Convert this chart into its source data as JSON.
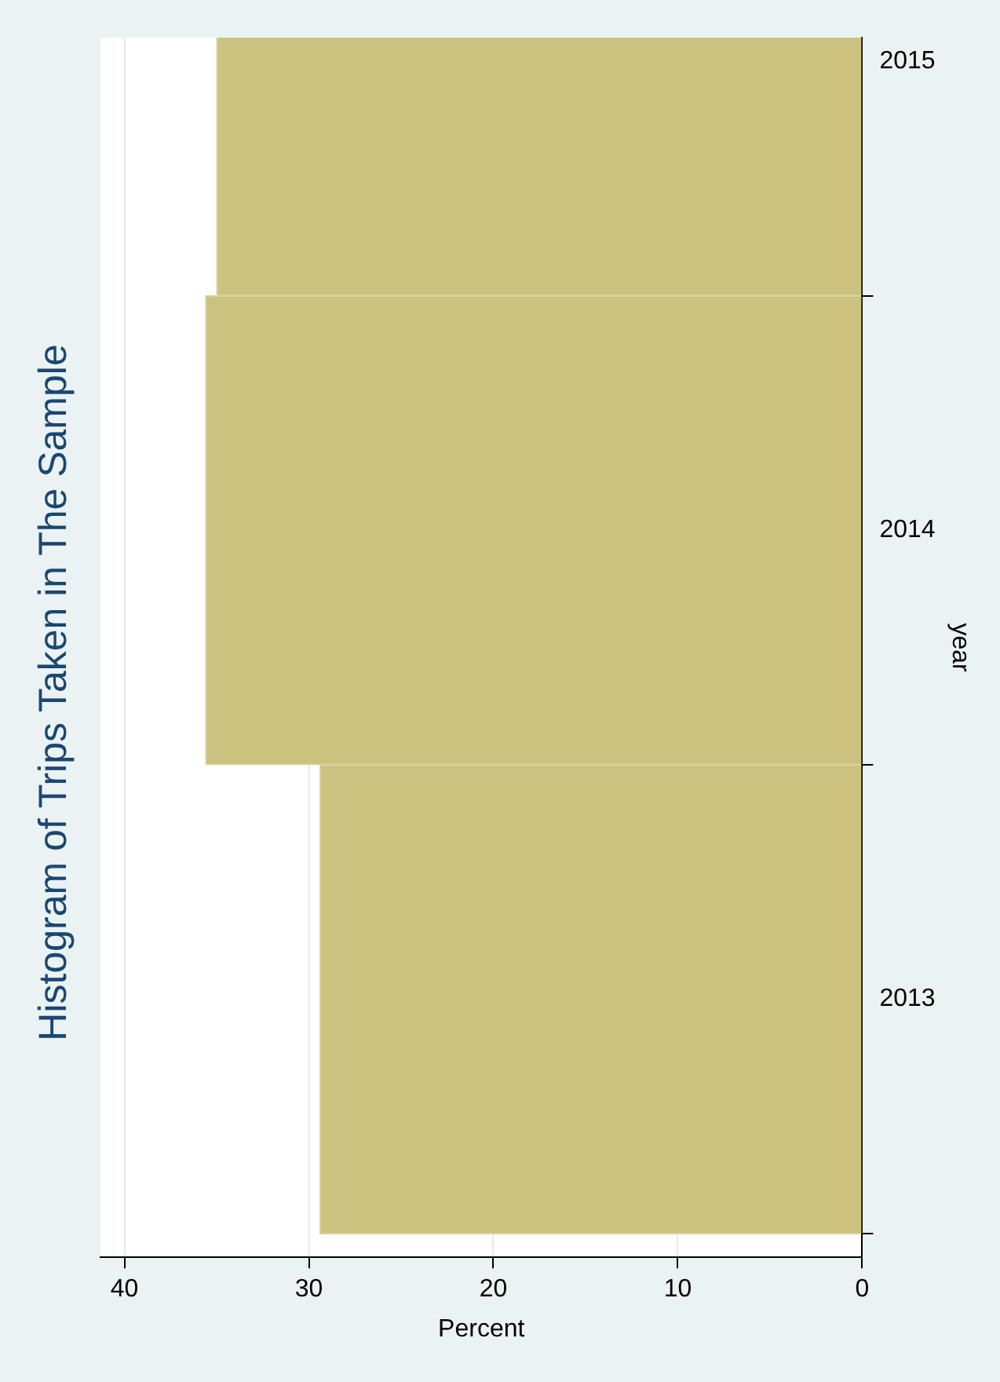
{
  "chart_data": {
    "type": "bar",
    "orientation": "horizontal",
    "title": "Histogram of Trips Taken in The Sample",
    "xlabel": "Percent",
    "ylabel": "year",
    "categories": [
      "2015",
      "2014",
      "2013"
    ],
    "values": [
      35.0,
      35.6,
      29.4
    ],
    "color": "#cac27e",
    "xlim": [
      41.3,
      0
    ],
    "xticks": [
      0,
      10,
      20,
      30,
      40
    ],
    "grid": "x"
  }
}
